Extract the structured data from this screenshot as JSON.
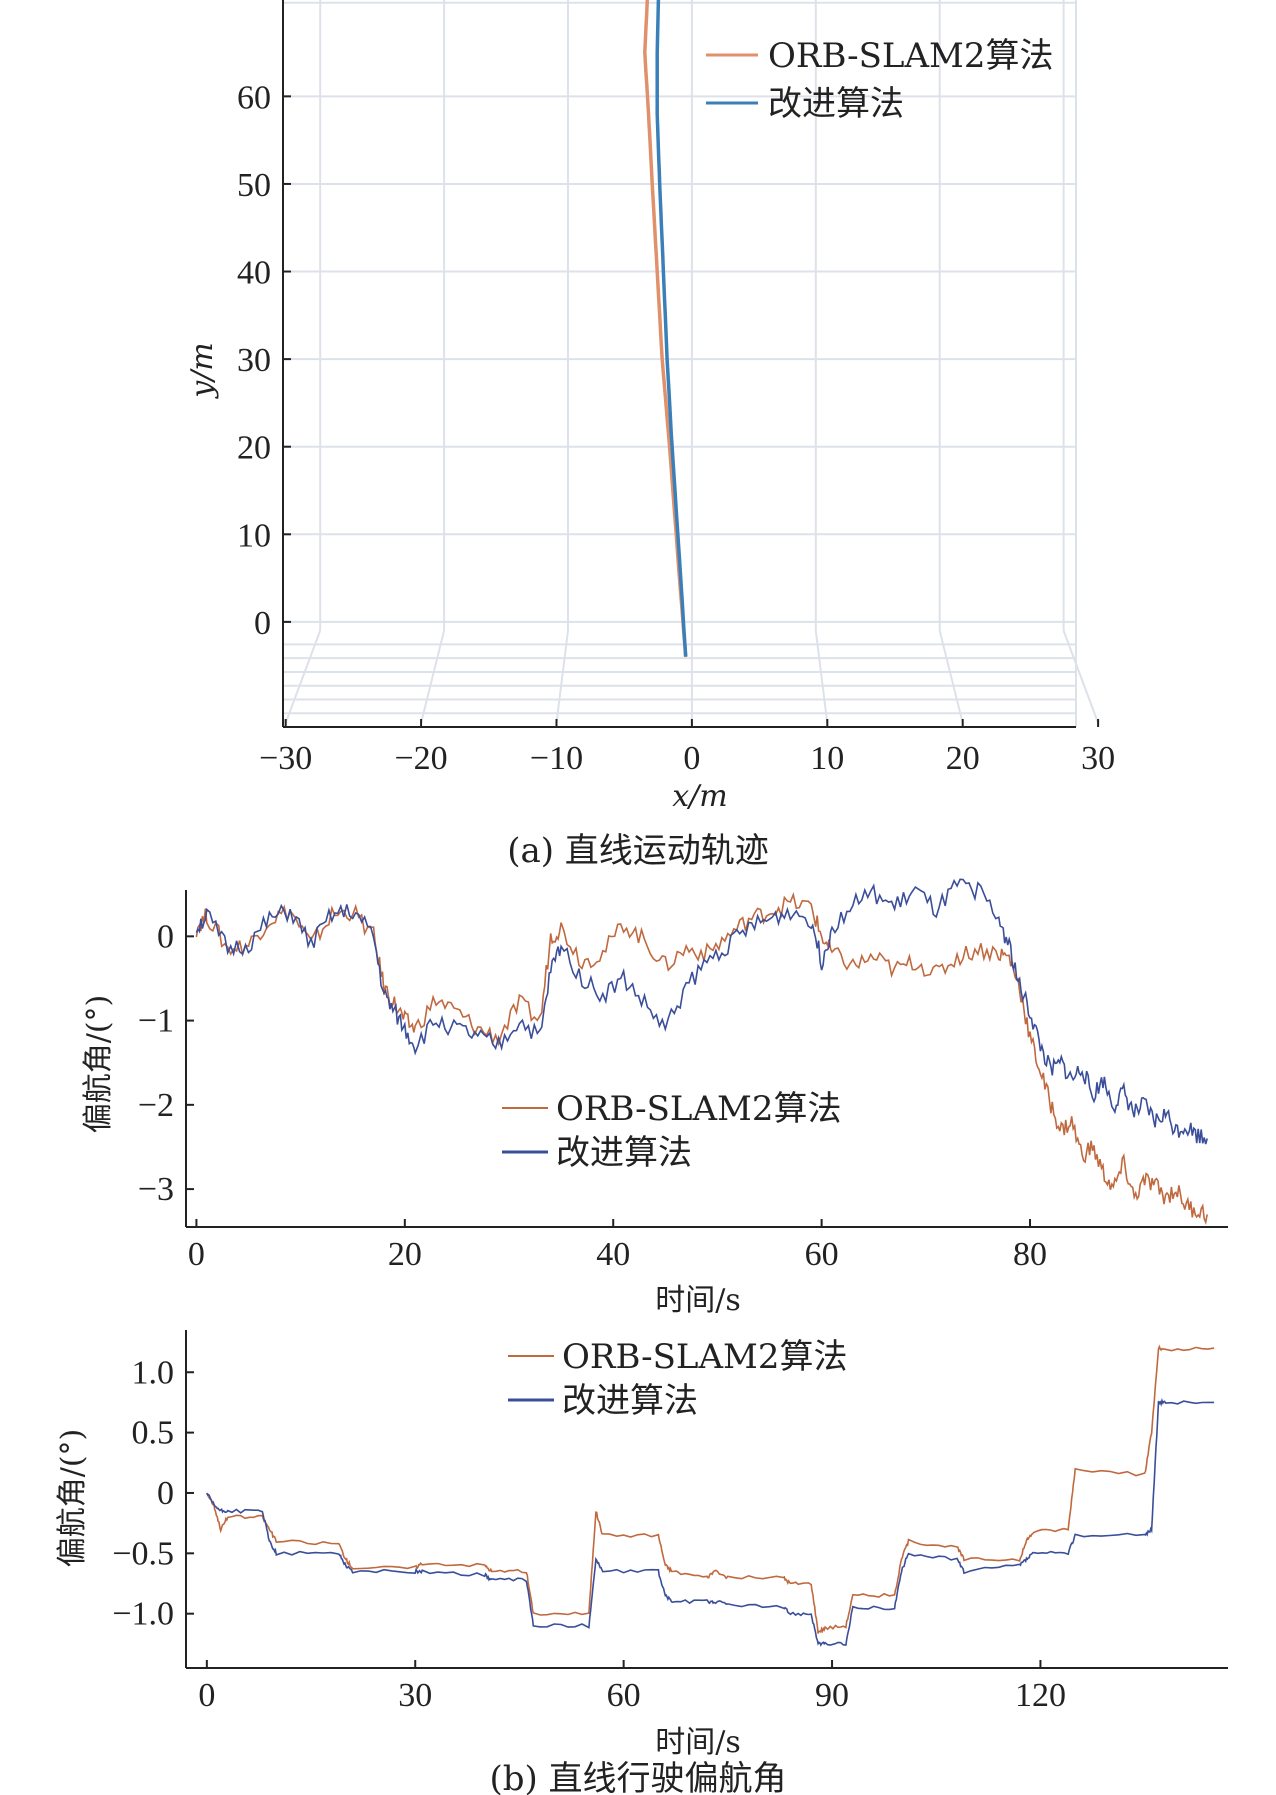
{
  "figure": {
    "caption_a": "(a) 直线运动轨迹",
    "caption_b": "(b) 直线行驶偏航角"
  },
  "colors": {
    "orb_a": "#e0906a",
    "imp_a": "#3b7fb8",
    "orb_b": "#c0693f",
    "imp_b": "#3a4e9a"
  },
  "chart_data": [
    {
      "type": "line",
      "xlabel": "x/m",
      "ylabel": "y/m",
      "xlim": [
        -33,
        31
      ],
      "ylim": [
        -12,
        71
      ],
      "xticks": [
        -30,
        -20,
        -10,
        0,
        10,
        20,
        30
      ],
      "yticks": [
        0,
        10,
        20,
        30,
        40,
        50,
        60
      ],
      "xtick_labels": [
        "−30",
        "−20",
        "−10",
        "0",
        "10",
        "20",
        "30"
      ],
      "ytick_labels": [
        "0",
        "10",
        "20",
        "30",
        "40",
        "50",
        "60"
      ],
      "legend": "top-right",
      "grid": true,
      "series": [
        {
          "name": "ORB-SLAM2算法",
          "x": [
            -0.5,
            -1.0,
            -1.8,
            -2.4,
            -2.8,
            -3.2,
            -3.5,
            -3.8,
            -3.6
          ],
          "y": [
            -4,
            5,
            20,
            30,
            40,
            50,
            58,
            65,
            71
          ]
        },
        {
          "name": "改进算法",
          "x": [
            -0.5,
            -0.9,
            -1.6,
            -2.0,
            -2.3,
            -2.6,
            -2.8,
            -2.8,
            -2.7
          ],
          "y": [
            -4,
            5,
            20,
            30,
            40,
            50,
            58,
            65,
            71
          ]
        }
      ]
    },
    {
      "type": "line",
      "xlabel": "时间/s",
      "ylabel": "偏航角/(°)",
      "xlim": [
        -1,
        99
      ],
      "ylim": [
        -3.45,
        0.55
      ],
      "xticks": [
        0,
        20,
        40,
        60,
        80
      ],
      "yticks": [
        0,
        -1,
        -2,
        -3
      ],
      "xtick_labels": [
        "0",
        "20",
        "40",
        "60",
        "80"
      ],
      "ytick_labels": [
        "0",
        "−1",
        "−2",
        "−3"
      ],
      "legend": "center",
      "grid": false,
      "series": [
        {
          "name": "ORB-SLAM2算法",
          "x": [
            0,
            1,
            3,
            5,
            7,
            9,
            11,
            13,
            15,
            17,
            18,
            19,
            20,
            21,
            23,
            25,
            27,
            29,
            31,
            33,
            34,
            35,
            37,
            39,
            41,
            43,
            45,
            47,
            49,
            51,
            53,
            55,
            57,
            59,
            60,
            61,
            63,
            65,
            67,
            69,
            71,
            73,
            75,
            77,
            78,
            79,
            80,
            81,
            82,
            83,
            84,
            85,
            86,
            87,
            88,
            89,
            90,
            91,
            92,
            93,
            94,
            95,
            96,
            97
          ],
          "y": [
            0.1,
            0.25,
            -0.15,
            -0.1,
            0.2,
            0.3,
            -0.1,
            0.25,
            0.3,
            0.0,
            -0.6,
            -0.8,
            -1.0,
            -1.1,
            -0.75,
            -0.9,
            -1.1,
            -1.2,
            -0.8,
            -1.0,
            0.0,
            0.1,
            -0.3,
            -0.2,
            0.15,
            -0.05,
            -0.35,
            -0.15,
            -0.2,
            0.0,
            0.2,
            0.3,
            0.4,
            0.35,
            0.0,
            -0.2,
            -0.35,
            -0.25,
            -0.4,
            -0.3,
            -0.45,
            -0.25,
            -0.15,
            -0.2,
            -0.25,
            -0.6,
            -1.2,
            -1.6,
            -2.0,
            -2.3,
            -2.2,
            -2.6,
            -2.5,
            -2.8,
            -3.0,
            -2.7,
            -3.1,
            -2.9,
            -2.95,
            -3.1,
            -3.0,
            -3.2,
            -3.25,
            -3.3
          ]
        },
        {
          "name": "改进算法",
          "x": [
            0,
            1,
            3,
            5,
            7,
            9,
            11,
            13,
            15,
            17,
            18,
            19,
            20,
            21,
            23,
            25,
            27,
            29,
            31,
            33,
            34,
            35,
            37,
            39,
            41,
            43,
            45,
            47,
            49,
            51,
            53,
            55,
            57,
            59,
            60,
            61,
            63,
            65,
            67,
            69,
            71,
            73,
            75,
            77,
            78,
            79,
            80,
            81,
            82,
            83,
            84,
            85,
            86,
            87,
            88,
            89,
            90,
            91,
            92,
            93,
            94,
            95,
            96,
            97
          ],
          "y": [
            0.1,
            0.25,
            -0.15,
            -0.1,
            0.2,
            0.3,
            -0.1,
            0.25,
            0.3,
            0.0,
            -0.7,
            -0.9,
            -1.1,
            -1.3,
            -1.0,
            -1.1,
            -1.2,
            -1.3,
            -1.0,
            -1.2,
            -0.4,
            -0.1,
            -0.5,
            -0.7,
            -0.5,
            -0.8,
            -1.1,
            -0.6,
            -0.3,
            -0.1,
            0.1,
            0.2,
            0.3,
            0.2,
            -0.3,
            0.1,
            0.4,
            0.5,
            0.35,
            0.55,
            0.3,
            0.6,
            0.55,
            0.2,
            -0.1,
            -0.6,
            -0.9,
            -1.3,
            -1.6,
            -1.5,
            -1.7,
            -1.55,
            -1.9,
            -1.7,
            -2.0,
            -1.85,
            -2.1,
            -2.0,
            -2.2,
            -2.1,
            -2.3,
            -2.25,
            -2.35,
            -2.4
          ]
        }
      ]
    },
    {
      "type": "line",
      "xlabel": "时间/s",
      "ylabel": "偏航角/(°)",
      "xlim": [
        -3,
        147
      ],
      "ylim": [
        -1.45,
        1.35
      ],
      "xticks": [
        0,
        30,
        60,
        90,
        120
      ],
      "yticks": [
        1.0,
        0.5,
        0,
        -0.5,
        -1.0
      ],
      "xtick_labels": [
        "0",
        "30",
        "60",
        "90",
        "120"
      ],
      "ytick_labels": [
        "1.0",
        "0.5",
        "0",
        "−0.5",
        "−1.0"
      ],
      "legend": "top-center",
      "grid": false,
      "series": [
        {
          "name": "ORB-SLAM2算法",
          "x": [
            0,
            1,
            2,
            3,
            8,
            9,
            10,
            19,
            20,
            21,
            30,
            31,
            40,
            41,
            46,
            47,
            55,
            56,
            57,
            65,
            66,
            67,
            72,
            73,
            75,
            83,
            84,
            87,
            88,
            89,
            92,
            93,
            99,
            100,
            101,
            108,
            109,
            117,
            118,
            119,
            124,
            125,
            135,
            136,
            137,
            138,
            145
          ],
          "y": [
            0.0,
            -0.1,
            -0.3,
            -0.2,
            -0.2,
            -0.3,
            -0.4,
            -0.42,
            -0.55,
            -0.62,
            -0.62,
            -0.58,
            -0.6,
            -0.65,
            -0.65,
            -1.0,
            -1.0,
            -0.15,
            -0.35,
            -0.35,
            -0.6,
            -0.65,
            -0.7,
            -0.65,
            -0.7,
            -0.7,
            -0.75,
            -0.75,
            -1.15,
            -1.12,
            -1.1,
            -0.85,
            -0.85,
            -0.55,
            -0.4,
            -0.45,
            -0.55,
            -0.55,
            -0.4,
            -0.32,
            -0.3,
            0.2,
            0.15,
            0.5,
            1.2,
            1.18,
            1.2
          ]
        },
        {
          "name": "改进算法",
          "x": [
            0,
            1,
            2,
            3,
            8,
            9,
            10,
            19,
            20,
            21,
            30,
            31,
            40,
            41,
            46,
            47,
            55,
            56,
            57,
            65,
            66,
            67,
            72,
            73,
            75,
            83,
            84,
            87,
            88,
            89,
            92,
            93,
            99,
            100,
            101,
            108,
            109,
            117,
            118,
            119,
            124,
            125,
            135,
            136,
            137,
            138,
            145
          ],
          "y": [
            0.0,
            -0.1,
            -0.15,
            -0.15,
            -0.15,
            -0.4,
            -0.5,
            -0.5,
            -0.6,
            -0.65,
            -0.65,
            -0.65,
            -0.68,
            -0.72,
            -0.72,
            -1.1,
            -1.1,
            -0.55,
            -0.65,
            -0.65,
            -0.85,
            -0.9,
            -0.9,
            -0.9,
            -0.92,
            -0.95,
            -1.0,
            -1.0,
            -1.25,
            -1.25,
            -1.25,
            -0.95,
            -0.95,
            -0.65,
            -0.5,
            -0.55,
            -0.65,
            -0.6,
            -0.55,
            -0.5,
            -0.5,
            -0.35,
            -0.35,
            -0.3,
            0.75,
            0.75,
            0.75
          ]
        }
      ]
    }
  ]
}
